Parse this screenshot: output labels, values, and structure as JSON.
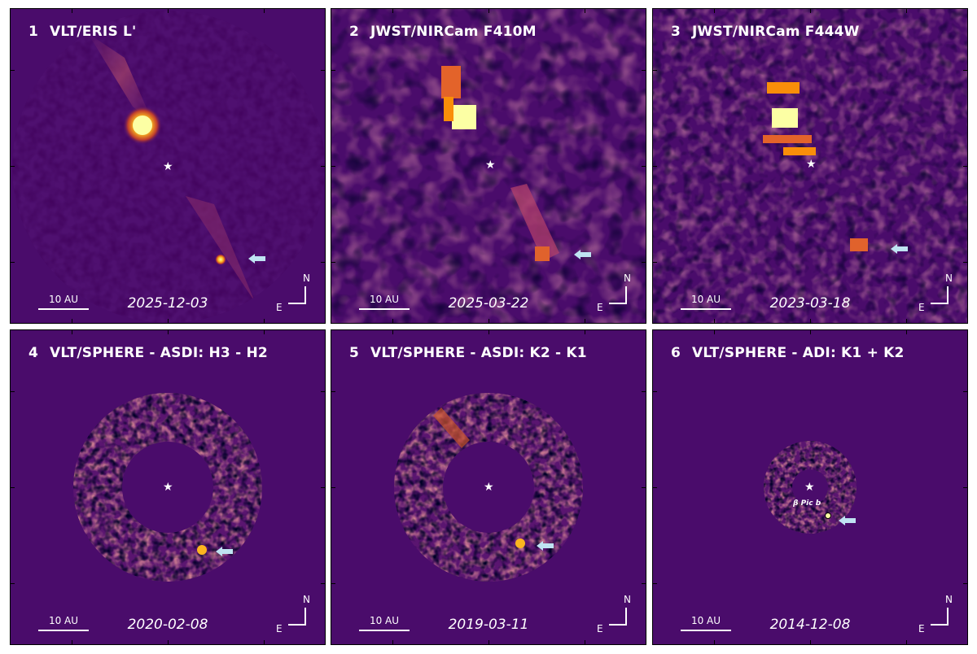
{
  "panels": [
    {
      "num": "1",
      "title": "VLT/ERIS L'",
      "date": "2025-12-03",
      "scale": "10 AU",
      "north": "N",
      "east": "E"
    },
    {
      "num": "2",
      "title": "JWST/NIRCam F410M",
      "date": "2025-03-22",
      "scale": "10 AU",
      "north": "N",
      "east": "E"
    },
    {
      "num": "3",
      "title": "JWST/NIRCam F444W",
      "date": "2023-03-18",
      "scale": "10 AU",
      "north": "N",
      "east": "E"
    },
    {
      "num": "4",
      "title": "VLT/SPHERE - ASDI: H3 - H2",
      "date": "2020-02-08",
      "scale": "10 AU",
      "north": "N",
      "east": "E"
    },
    {
      "num": "5",
      "title": "VLT/SPHERE - ASDI: K2 - K1",
      "date": "2019-03-11",
      "scale": "10 AU",
      "north": "N",
      "east": "E"
    },
    {
      "num": "6",
      "title": "VLT/SPHERE - ADI: K1 + K2",
      "date": "2014-12-08",
      "scale": "10 AU",
      "north": "N",
      "east": "E",
      "planet_label": "β Pic b"
    }
  ],
  "colors": {
    "background": "#4a0c6b",
    "hot": "#fcffa4",
    "warm": "#f98e09",
    "arrow": "#bfe3f2"
  },
  "icons": {
    "star": "star-icon",
    "arrow": "arrow-left-icon",
    "compass": "compass-icon"
  }
}
